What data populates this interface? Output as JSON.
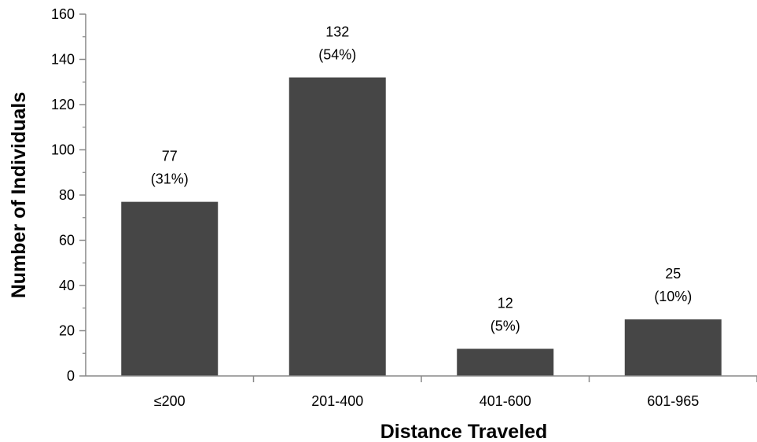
{
  "chart_data": {
    "type": "bar",
    "title": "",
    "xlabel": "Distance Traveled",
    "ylabel": "Number of Individuals",
    "categories": [
      "≤200",
      "201-400",
      "401-600",
      "601-965"
    ],
    "values": [
      77,
      132,
      12,
      25
    ],
    "percent_labels": [
      "(31%)",
      "(54%)",
      "(5%)",
      "(10%)"
    ],
    "ylim": [
      0,
      160
    ],
    "yticks": [
      0,
      20,
      40,
      60,
      80,
      100,
      120,
      140,
      160
    ],
    "grid": false,
    "legend": "none",
    "bar_color": "#464646"
  }
}
